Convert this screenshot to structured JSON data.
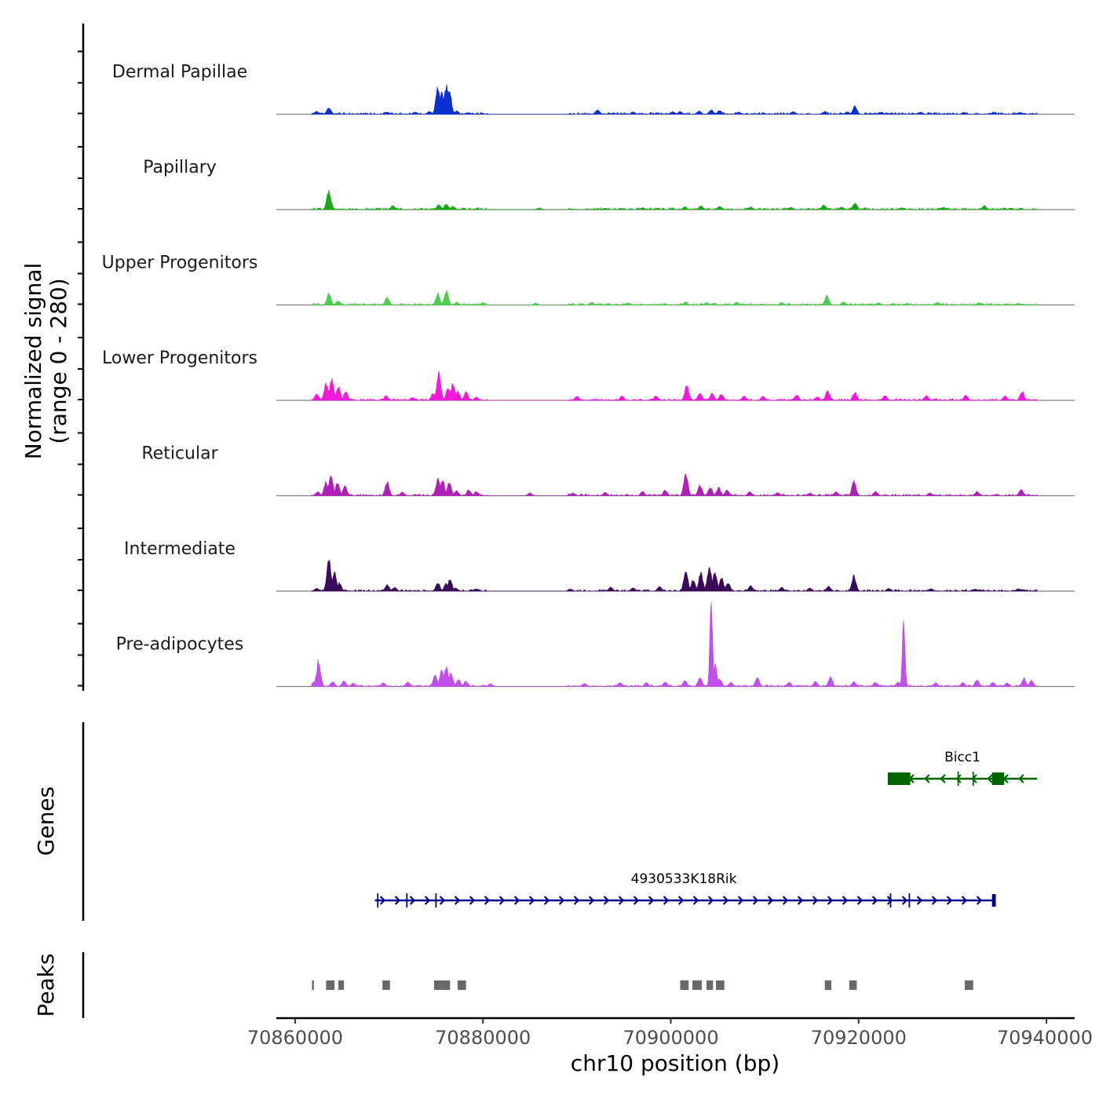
{
  "chart_data": {
    "type": "area",
    "title": "",
    "chromosome": "chr10",
    "xlabel": "chr10 position (bp)",
    "xlim": [
      70858000,
      70943000
    ],
    "x_ticks": [
      70860000,
      70880000,
      70900000,
      70920000,
      70940000
    ],
    "x_tick_labels": [
      "70860000",
      "70880000",
      "70900000",
      "70920000",
      "70940000"
    ],
    "coverage": {
      "ylabel_line1": "Normalized signal",
      "ylabel_line2": "(range 0 - 280)",
      "ylim": [
        0,
        280
      ],
      "signal_range_bp": [
        70861800,
        70939000
      ],
      "tracks": [
        {
          "name": "Dermal Papillae",
          "color": "#0c2fd1",
          "peaks": [
            [
              70862300,
              10
            ],
            [
              70863600,
              24
            ],
            [
              70869800,
              8
            ],
            [
              70872800,
              8
            ],
            [
              70874300,
              10
            ],
            [
              70875200,
              95
            ],
            [
              70875600,
              78
            ],
            [
              70876100,
              105
            ],
            [
              70876400,
              100
            ],
            [
              70877200,
              12
            ],
            [
              70878500,
              6
            ],
            [
              70892200,
              16
            ],
            [
              70896000,
              8
            ],
            [
              70900200,
              9
            ],
            [
              70901000,
              10
            ],
            [
              70903000,
              12
            ],
            [
              70904300,
              17
            ],
            [
              70905200,
              14
            ],
            [
              70907200,
              8
            ],
            [
              70913000,
              10
            ],
            [
              70916400,
              10
            ],
            [
              70918800,
              9
            ],
            [
              70919600,
              30
            ],
            [
              70922400,
              8
            ],
            [
              70926600,
              8
            ],
            [
              70931200,
              7
            ],
            [
              70934400,
              8
            ],
            [
              70937200,
              7
            ]
          ]
        },
        {
          "name": "Papillary",
          "color": "#17a817",
          "peaks": [
            [
              70863600,
              70
            ],
            [
              70870400,
              15
            ],
            [
              70875300,
              18
            ],
            [
              70876100,
              22
            ],
            [
              70876800,
              12
            ],
            [
              70886000,
              6
            ],
            [
              70893000,
              5
            ],
            [
              70897000,
              7
            ],
            [
              70901500,
              10
            ],
            [
              70903200,
              14
            ],
            [
              70905200,
              12
            ],
            [
              70908500,
              9
            ],
            [
              70912800,
              8
            ],
            [
              70916300,
              17
            ],
            [
              70918200,
              10
            ],
            [
              70919600,
              25
            ],
            [
              70924600,
              7
            ],
            [
              70929000,
              9
            ],
            [
              70933400,
              14
            ],
            [
              70936200,
              6
            ]
          ]
        },
        {
          "name": "Upper Progenitors",
          "color": "#4bd04b",
          "peaks": [
            [
              70863600,
              42
            ],
            [
              70864600,
              16
            ],
            [
              70869800,
              28
            ],
            [
              70875200,
              42
            ],
            [
              70876100,
              50
            ],
            [
              70877200,
              10
            ],
            [
              70880000,
              8
            ],
            [
              70885600,
              7
            ],
            [
              70891600,
              10
            ],
            [
              70895400,
              8
            ],
            [
              70901600,
              11
            ],
            [
              70903800,
              9
            ],
            [
              70907000,
              10
            ],
            [
              70911800,
              9
            ],
            [
              70916600,
              34
            ],
            [
              70918400,
              12
            ],
            [
              70922100,
              8
            ],
            [
              70928400,
              10
            ],
            [
              70932800,
              8
            ],
            [
              70937000,
              6
            ]
          ]
        },
        {
          "name": "Lower Progenitors",
          "color": "#f21ad8",
          "peaks": [
            [
              70862300,
              25
            ],
            [
              70863300,
              62
            ],
            [
              70863900,
              75
            ],
            [
              70864600,
              50
            ],
            [
              70865400,
              32
            ],
            [
              70869700,
              16
            ],
            [
              70872500,
              12
            ],
            [
              70874700,
              25
            ],
            [
              70875300,
              100
            ],
            [
              70876300,
              48
            ],
            [
              70876800,
              62
            ],
            [
              70877300,
              35
            ],
            [
              70878200,
              30
            ],
            [
              70879300,
              12
            ],
            [
              70890000,
              16
            ],
            [
              70894800,
              16
            ],
            [
              70898400,
              16
            ],
            [
              70901700,
              55
            ],
            [
              70903100,
              28
            ],
            [
              70904400,
              25
            ],
            [
              70905400,
              22
            ],
            [
              70907800,
              16
            ],
            [
              70909800,
              15
            ],
            [
              70913400,
              20
            ],
            [
              70915600,
              14
            ],
            [
              70916700,
              35
            ],
            [
              70919600,
              30
            ],
            [
              70922800,
              18
            ],
            [
              70927200,
              17
            ],
            [
              70931400,
              18
            ],
            [
              70935600,
              16
            ],
            [
              70937400,
              32
            ]
          ]
        },
        {
          "name": "Reticular",
          "color": "#b020b8",
          "peaks": [
            [
              70862400,
              15
            ],
            [
              70863300,
              50
            ],
            [
              70863800,
              75
            ],
            [
              70864500,
              48
            ],
            [
              70865300,
              36
            ],
            [
              70869800,
              50
            ],
            [
              70871400,
              14
            ],
            [
              70875200,
              60
            ],
            [
              70875700,
              55
            ],
            [
              70876400,
              50
            ],
            [
              70877200,
              18
            ],
            [
              70878500,
              22
            ],
            [
              70879300,
              16
            ],
            [
              70885000,
              10
            ],
            [
              70889600,
              10
            ],
            [
              70893000,
              12
            ],
            [
              70897000,
              15
            ],
            [
              70899400,
              20
            ],
            [
              70901600,
              80
            ],
            [
              70903100,
              38
            ],
            [
              70904200,
              32
            ],
            [
              70905100,
              30
            ],
            [
              70906000,
              22
            ],
            [
              70908400,
              15
            ],
            [
              70911400,
              12
            ],
            [
              70914800,
              10
            ],
            [
              70917600,
              14
            ],
            [
              70919500,
              52
            ],
            [
              70921800,
              16
            ],
            [
              70927600,
              10
            ],
            [
              70932600,
              15
            ],
            [
              70937300,
              22
            ]
          ]
        },
        {
          "name": "Intermediate",
          "color": "#3b0a5a",
          "peaks": [
            [
              70862300,
              10
            ],
            [
              70863600,
              115
            ],
            [
              70864200,
              65
            ],
            [
              70864700,
              30
            ],
            [
              70869800,
              25
            ],
            [
              70870600,
              14
            ],
            [
              70875200,
              30
            ],
            [
              70876100,
              28
            ],
            [
              70876500,
              45
            ],
            [
              70877100,
              12
            ],
            [
              70879300,
              8
            ],
            [
              70889300,
              8
            ],
            [
              70893600,
              14
            ],
            [
              70896000,
              12
            ],
            [
              70898800,
              18
            ],
            [
              70901600,
              75
            ],
            [
              70902400,
              40
            ],
            [
              70903200,
              65
            ],
            [
              70904100,
              90
            ],
            [
              70904700,
              70
            ],
            [
              70905400,
              48
            ],
            [
              70906100,
              30
            ],
            [
              70908500,
              20
            ],
            [
              70911800,
              14
            ],
            [
              70914800,
              11
            ],
            [
              70916800,
              18
            ],
            [
              70919500,
              55
            ],
            [
              70923200,
              10
            ],
            [
              70927700,
              9
            ],
            [
              70932400,
              8
            ],
            [
              70937000,
              9
            ]
          ]
        },
        {
          "name": "Pre-adipocytes",
          "color": "#c04ee8",
          "peaks": [
            [
              70862000,
              18
            ],
            [
              70862500,
              95
            ],
            [
              70864000,
              18
            ],
            [
              70865200,
              20
            ],
            [
              70866200,
              12
            ],
            [
              70869400,
              14
            ],
            [
              70872000,
              16
            ],
            [
              70874900,
              42
            ],
            [
              70875600,
              60
            ],
            [
              70876100,
              70
            ],
            [
              70876600,
              48
            ],
            [
              70877400,
              25
            ],
            [
              70878200,
              20
            ],
            [
              70880800,
              10
            ],
            [
              70890800,
              12
            ],
            [
              70894600,
              15
            ],
            [
              70897400,
              14
            ],
            [
              70899400,
              16
            ],
            [
              70901500,
              22
            ],
            [
              70903100,
              35
            ],
            [
              70904300,
              340
            ],
            [
              70904700,
              78
            ],
            [
              70905200,
              28
            ],
            [
              70906400,
              15
            ],
            [
              70909200,
              32
            ],
            [
              70912600,
              15
            ],
            [
              70915400,
              18
            ],
            [
              70917000,
              34
            ],
            [
              70919500,
              18
            ],
            [
              70921800,
              16
            ],
            [
              70924200,
              16
            ],
            [
              70924800,
              250
            ],
            [
              70928200,
              14
            ],
            [
              70931100,
              14
            ],
            [
              70932600,
              26
            ],
            [
              70934300,
              16
            ],
            [
              70935800,
              14
            ],
            [
              70937600,
              30
            ],
            [
              70938400,
              22
            ]
          ]
        }
      ]
    },
    "genes": {
      "ylabel": "Genes",
      "items": [
        {
          "name": "Bicc1",
          "strand": "-",
          "color": "#006400",
          "start": 70923100,
          "end": 70939000,
          "exons": [
            [
              70923100,
              70925500
            ],
            [
              70934200,
              70935500
            ]
          ],
          "introns_marks": [
            70930600,
            70932200
          ]
        },
        {
          "name": "4930533K18Rik",
          "strand": "+",
          "color": "#00008b",
          "start": 70868500,
          "end": 70934600,
          "exons": [
            [
              70934200,
              70934600
            ]
          ],
          "introns_marks": [
            70868800,
            70871900,
            70875000,
            70923400,
            70925400
          ]
        }
      ]
    },
    "peaks": {
      "ylabel": "Peaks",
      "color": "#696969",
      "regions": [
        [
          70861800,
          70862000
        ],
        [
          70863300,
          70864200
        ],
        [
          70864600,
          70865200
        ],
        [
          70869300,
          70870100
        ],
        [
          70874800,
          70875600
        ],
        [
          70875600,
          70876500
        ],
        [
          70877300,
          70878200
        ],
        [
          70901000,
          70901900
        ],
        [
          70902300,
          70903300
        ],
        [
          70903800,
          70904500
        ],
        [
          70904800,
          70905700
        ],
        [
          70916400,
          70917100
        ],
        [
          70919000,
          70919800
        ],
        [
          70931300,
          70932200
        ]
      ]
    }
  }
}
